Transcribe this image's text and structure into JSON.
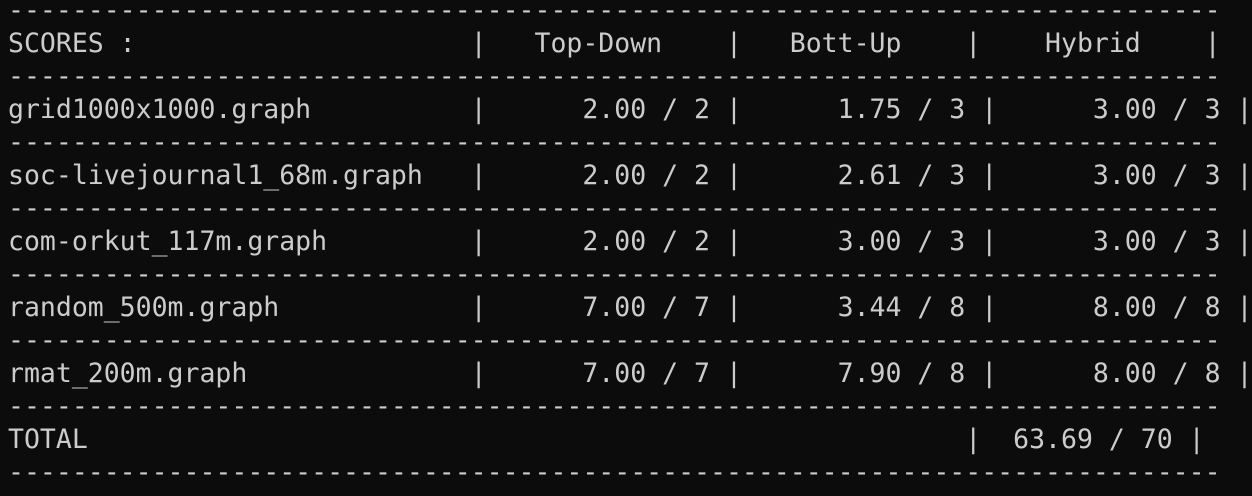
{
  "terminal": {
    "separator": "----------------------------------------------------------------------------",
    "header_line": "SCORES :                     |   Top-Down    |   Bott-Up    |    Hybrid    |",
    "rows": [
      "grid1000x1000.graph          |      2.00 / 2 |      1.75 / 3 |      3.00 / 3 |",
      "soc-livejournal1_68m.graph   |      2.00 / 2 |      2.61 / 3 |      3.00 / 3 |",
      "com-orkut_117m.graph         |      2.00 / 2 |      3.00 / 3 |      3.00 / 3 |",
      "random_500m.graph            |      7.00 / 7 |      3.44 / 8 |      8.00 / 8 |",
      "rmat_200m.graph              |      7.00 / 7 |      7.90 / 8 |      8.00 / 8 |"
    ],
    "total_line": "TOTAL                                                       |  63.69 / 70 |"
  }
}
